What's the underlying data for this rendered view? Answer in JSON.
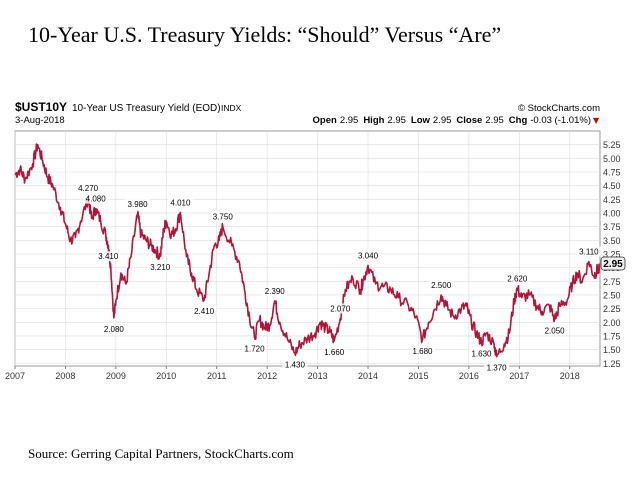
{
  "slide": {
    "title": "10-Year U.S. Treasury Yields:  “Should” Versus “Are”",
    "source": "Source: Gerring Capital Partners, StockCharts.com"
  },
  "header": {
    "symbol": "$UST10Y",
    "description": "10-Year US Treasury Yield (EOD)",
    "exchange": "INDX",
    "date": "3-Aug-2018",
    "brand": "© StockCharts.com",
    "quote": [
      {
        "label": "Open",
        "value": "2.95"
      },
      {
        "label": "High",
        "value": "2.95"
      },
      {
        "label": "Low",
        "value": "2.95"
      },
      {
        "label": "Close",
        "value": "2.95"
      },
      {
        "label": "Chg",
        "value": "-0.03 (-1.01%)"
      }
    ],
    "down_arrow": "▼",
    "last_value": "2.95"
  },
  "colors": {
    "line": "#b0163a",
    "grid": "#dcdcdc",
    "axis": "#555555",
    "box": "#eeeeee"
  },
  "chart_data": {
    "type": "line",
    "xlim": [
      2007,
      2018.6
    ],
    "ylim": [
      1.2,
      5.5
    ],
    "y_ticks": [
      "1.25",
      "1.50",
      "1.75",
      "2.00",
      "2.25",
      "2.50",
      "2.75",
      "3.00",
      "3.25",
      "3.50",
      "3.75",
      "4.00",
      "4.25",
      "4.50",
      "4.75",
      "5.00",
      "5.25"
    ],
    "x_ticks": [
      "2007",
      "2008",
      "2009",
      "2010",
      "2011",
      "2012",
      "2013",
      "2014",
      "2015",
      "2016",
      "2017",
      "2018"
    ],
    "series": [
      {
        "points": [
          [
            2007.0,
            4.7
          ],
          [
            2007.1,
            4.8
          ],
          [
            2007.2,
            4.62
          ],
          [
            2007.35,
            4.9
          ],
          [
            2007.45,
            5.25
          ],
          [
            2007.55,
            4.95
          ],
          [
            2007.65,
            4.65
          ],
          [
            2007.75,
            4.5
          ],
          [
            2007.9,
            4.1
          ],
          [
            2008.0,
            3.8
          ],
          [
            2008.1,
            3.5
          ],
          [
            2008.2,
            3.55
          ],
          [
            2008.3,
            3.85
          ],
          [
            2008.45,
            4.27
          ],
          [
            2008.52,
            3.9
          ],
          [
            2008.6,
            4.08
          ],
          [
            2008.7,
            3.85
          ],
          [
            2008.8,
            3.6
          ],
          [
            2008.85,
            3.41
          ],
          [
            2008.9,
            3.0
          ],
          [
            2008.96,
            2.08
          ],
          [
            2009.0,
            2.4
          ],
          [
            2009.1,
            2.9
          ],
          [
            2009.2,
            2.7
          ],
          [
            2009.3,
            3.2
          ],
          [
            2009.43,
            3.98
          ],
          [
            2009.5,
            3.6
          ],
          [
            2009.6,
            3.5
          ],
          [
            2009.7,
            3.4
          ],
          [
            2009.8,
            3.3
          ],
          [
            2009.88,
            3.21
          ],
          [
            2009.95,
            3.7
          ],
          [
            2010.0,
            3.85
          ],
          [
            2010.1,
            3.6
          ],
          [
            2010.18,
            3.7
          ],
          [
            2010.28,
            4.01
          ],
          [
            2010.4,
            3.2
          ],
          [
            2010.5,
            2.9
          ],
          [
            2010.6,
            2.6
          ],
          [
            2010.75,
            2.41
          ],
          [
            2010.85,
            2.9
          ],
          [
            2010.95,
            3.4
          ],
          [
            2011.05,
            3.5
          ],
          [
            2011.12,
            3.75
          ],
          [
            2011.3,
            3.4
          ],
          [
            2011.45,
            3.1
          ],
          [
            2011.55,
            2.6
          ],
          [
            2011.65,
            2.1
          ],
          [
            2011.75,
            1.72
          ],
          [
            2011.85,
            2.05
          ],
          [
            2011.95,
            1.9
          ],
          [
            2012.05,
            1.95
          ],
          [
            2012.15,
            2.39
          ],
          [
            2012.25,
            2.0
          ],
          [
            2012.4,
            1.7
          ],
          [
            2012.55,
            1.43
          ],
          [
            2012.65,
            1.6
          ],
          [
            2012.8,
            1.7
          ],
          [
            2012.95,
            1.8
          ],
          [
            2013.05,
            2.0
          ],
          [
            2013.15,
            1.9
          ],
          [
            2013.25,
            1.82
          ],
          [
            2013.33,
            1.66
          ],
          [
            2013.45,
            2.07
          ],
          [
            2013.55,
            2.6
          ],
          [
            2013.7,
            2.8
          ],
          [
            2013.85,
            2.6
          ],
          [
            2013.9,
            2.75
          ],
          [
            2014.0,
            3.04
          ],
          [
            2014.15,
            2.7
          ],
          [
            2014.3,
            2.65
          ],
          [
            2014.45,
            2.6
          ],
          [
            2014.6,
            2.45
          ],
          [
            2014.8,
            2.3
          ],
          [
            2014.95,
            2.1
          ],
          [
            2015.08,
            1.68
          ],
          [
            2015.2,
            2.0
          ],
          [
            2015.3,
            2.2
          ],
          [
            2015.45,
            2.5
          ],
          [
            2015.55,
            2.3
          ],
          [
            2015.7,
            2.1
          ],
          [
            2015.85,
            2.25
          ],
          [
            2015.95,
            2.3
          ],
          [
            2016.05,
            2.0
          ],
          [
            2016.15,
            1.8
          ],
          [
            2016.25,
            1.63
          ],
          [
            2016.35,
            1.8
          ],
          [
            2016.5,
            1.6
          ],
          [
            2016.55,
            1.37
          ],
          [
            2016.7,
            1.6
          ],
          [
            2016.8,
            1.8
          ],
          [
            2016.9,
            2.4
          ],
          [
            2016.96,
            2.62
          ],
          [
            2017.05,
            2.45
          ],
          [
            2017.2,
            2.5
          ],
          [
            2017.35,
            2.3
          ],
          [
            2017.45,
            2.2
          ],
          [
            2017.6,
            2.3
          ],
          [
            2017.7,
            2.05
          ],
          [
            2017.8,
            2.3
          ],
          [
            2017.95,
            2.4
          ],
          [
            2018.05,
            2.7
          ],
          [
            2018.15,
            2.9
          ],
          [
            2018.25,
            2.75
          ],
          [
            2018.38,
            3.11
          ],
          [
            2018.48,
            2.85
          ],
          [
            2018.55,
            2.97
          ],
          [
            2018.59,
            2.95
          ]
        ]
      }
    ],
    "annotations": [
      {
        "x": 2008.45,
        "y": 4.27,
        "label": "4.270"
      },
      {
        "x": 2008.6,
        "y": 4.08,
        "label": "4.080"
      },
      {
        "x": 2008.85,
        "y": 3.41,
        "label": "3.410"
      },
      {
        "x": 2008.96,
        "y": 2.08,
        "label": "2.080"
      },
      {
        "x": 2009.43,
        "y": 3.98,
        "label": "3.980"
      },
      {
        "x": 2009.88,
        "y": 3.21,
        "label": "3.210"
      },
      {
        "x": 2010.28,
        "y": 4.01,
        "label": "4.010"
      },
      {
        "x": 2010.75,
        "y": 2.41,
        "label": "2.410"
      },
      {
        "x": 2011.12,
        "y": 3.75,
        "label": "3.750"
      },
      {
        "x": 2011.75,
        "y": 1.72,
        "label": "1.720"
      },
      {
        "x": 2012.15,
        "y": 2.39,
        "label": "2.390"
      },
      {
        "x": 2012.55,
        "y": 1.43,
        "label": "1.430"
      },
      {
        "x": 2013.45,
        "y": 2.07,
        "label": "2.070"
      },
      {
        "x": 2013.33,
        "y": 1.66,
        "label": "1.660"
      },
      {
        "x": 2014.0,
        "y": 3.04,
        "label": "3.040"
      },
      {
        "x": 2015.08,
        "y": 1.68,
        "label": "1.680"
      },
      {
        "x": 2015.45,
        "y": 2.5,
        "label": "2.500"
      },
      {
        "x": 2016.25,
        "y": 1.63,
        "label": "1.630"
      },
      {
        "x": 2016.55,
        "y": 1.37,
        "label": "1.370"
      },
      {
        "x": 2016.96,
        "y": 2.62,
        "label": "2.620"
      },
      {
        "x": 2017.7,
        "y": 2.05,
        "label": "2.050"
      },
      {
        "x": 2018.38,
        "y": 3.11,
        "label": "3.110"
      }
    ]
  }
}
